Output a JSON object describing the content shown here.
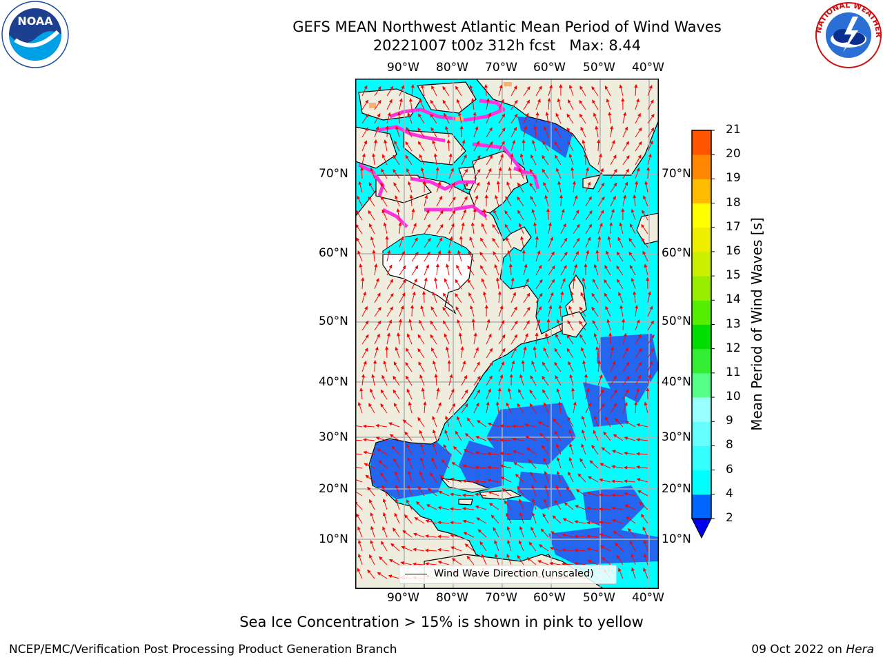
{
  "header": {
    "title_line1": "GEFS MEAN Northwest Atlantic Mean Period of Wind Waves",
    "title_line2": "20221007 t00z 312h fcst   Max: 8.44"
  },
  "logos": {
    "noaa_text": "NOAA",
    "nws_text": "NATIONAL WEATHER SERVICE"
  },
  "map": {
    "lon_labels": [
      "90°W",
      "80°W",
      "70°W",
      "60°W",
      "50°W",
      "40°W"
    ],
    "lat_labels": [
      "70°N",
      "60°N",
      "50°N",
      "40°N",
      "30°N",
      "20°N",
      "10°N"
    ],
    "colors": {
      "ocean_low": "#2466f0",
      "ocean": "#00ffff",
      "land": "#efedde",
      "ice": "#ff33dd",
      "arrow": "#ff0000",
      "grid": "#b0b0b0"
    },
    "legend": "Wind Wave Direction (unscaled)"
  },
  "colorbar": {
    "label": "Mean Period of Wind Waves [s]",
    "ticks": [
      "2",
      "4",
      "6",
      "8",
      "9",
      "10",
      "11",
      "12",
      "13",
      "14",
      "15",
      "16",
      "17",
      "18",
      "19",
      "20",
      "21"
    ],
    "colors": [
      "#0066ff",
      "#00ffff",
      "#33ffff",
      "#66ffff",
      "#99ffff",
      "#55ff88",
      "#33ee33",
      "#00dd00",
      "#55ee00",
      "#99ee00",
      "#ccee00",
      "#eeee00",
      "#ffff00",
      "#ffbb00",
      "#ff8800",
      "#ff5500",
      "#ff2200",
      "#ff0000"
    ],
    "under_color": "#0000ee"
  },
  "footer": {
    "caption": "Sea Ice Concentration > 15% is shown in pink to yellow",
    "left": "NCEP/EMC/Verification Post Processing Product Generation Branch",
    "right_date": "09 Oct 2022 on ",
    "right_host": "Hera"
  }
}
